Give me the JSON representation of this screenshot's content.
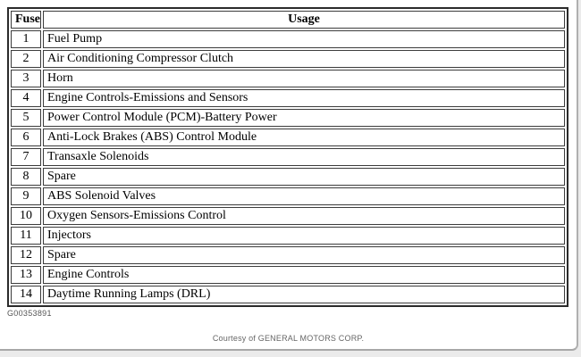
{
  "page": {
    "figure_id": "G00353891",
    "credit": "Courtesy of GENERAL MOTORS CORP."
  },
  "table": {
    "headers": {
      "fuse": "Fuse",
      "usage": "Usage"
    },
    "rows": [
      {
        "fuse": "1",
        "usage": "Fuel Pump"
      },
      {
        "fuse": "2",
        "usage": "Air Conditioning Compressor Clutch"
      },
      {
        "fuse": "3",
        "usage": "Horn"
      },
      {
        "fuse": "4",
        "usage": "Engine Controls-Emissions and Sensors"
      },
      {
        "fuse": "5",
        "usage": "Power Control Module (PCM)-Battery Power"
      },
      {
        "fuse": "6",
        "usage": "Anti-Lock Brakes (ABS) Control Module"
      },
      {
        "fuse": "7",
        "usage": "Transaxle Solenoids"
      },
      {
        "fuse": "8",
        "usage": "Spare"
      },
      {
        "fuse": "9",
        "usage": "ABS Solenoid Valves"
      },
      {
        "fuse": "10",
        "usage": "Oxygen Sensors-Emissions Control"
      },
      {
        "fuse": "11",
        "usage": "Injectors"
      },
      {
        "fuse": "12",
        "usage": "Spare"
      },
      {
        "fuse": "13",
        "usage": "Engine Controls"
      },
      {
        "fuse": "14",
        "usage": "Daytime Running Lamps (DRL)"
      }
    ]
  },
  "colors": {
    "page_bg": "#ebebeb",
    "panel_bg": "#ffffff",
    "table_outer_border": "#2b2b2b",
    "cell_border": "#3c3c3c",
    "text": "#000000",
    "muted_text": "#666666"
  }
}
